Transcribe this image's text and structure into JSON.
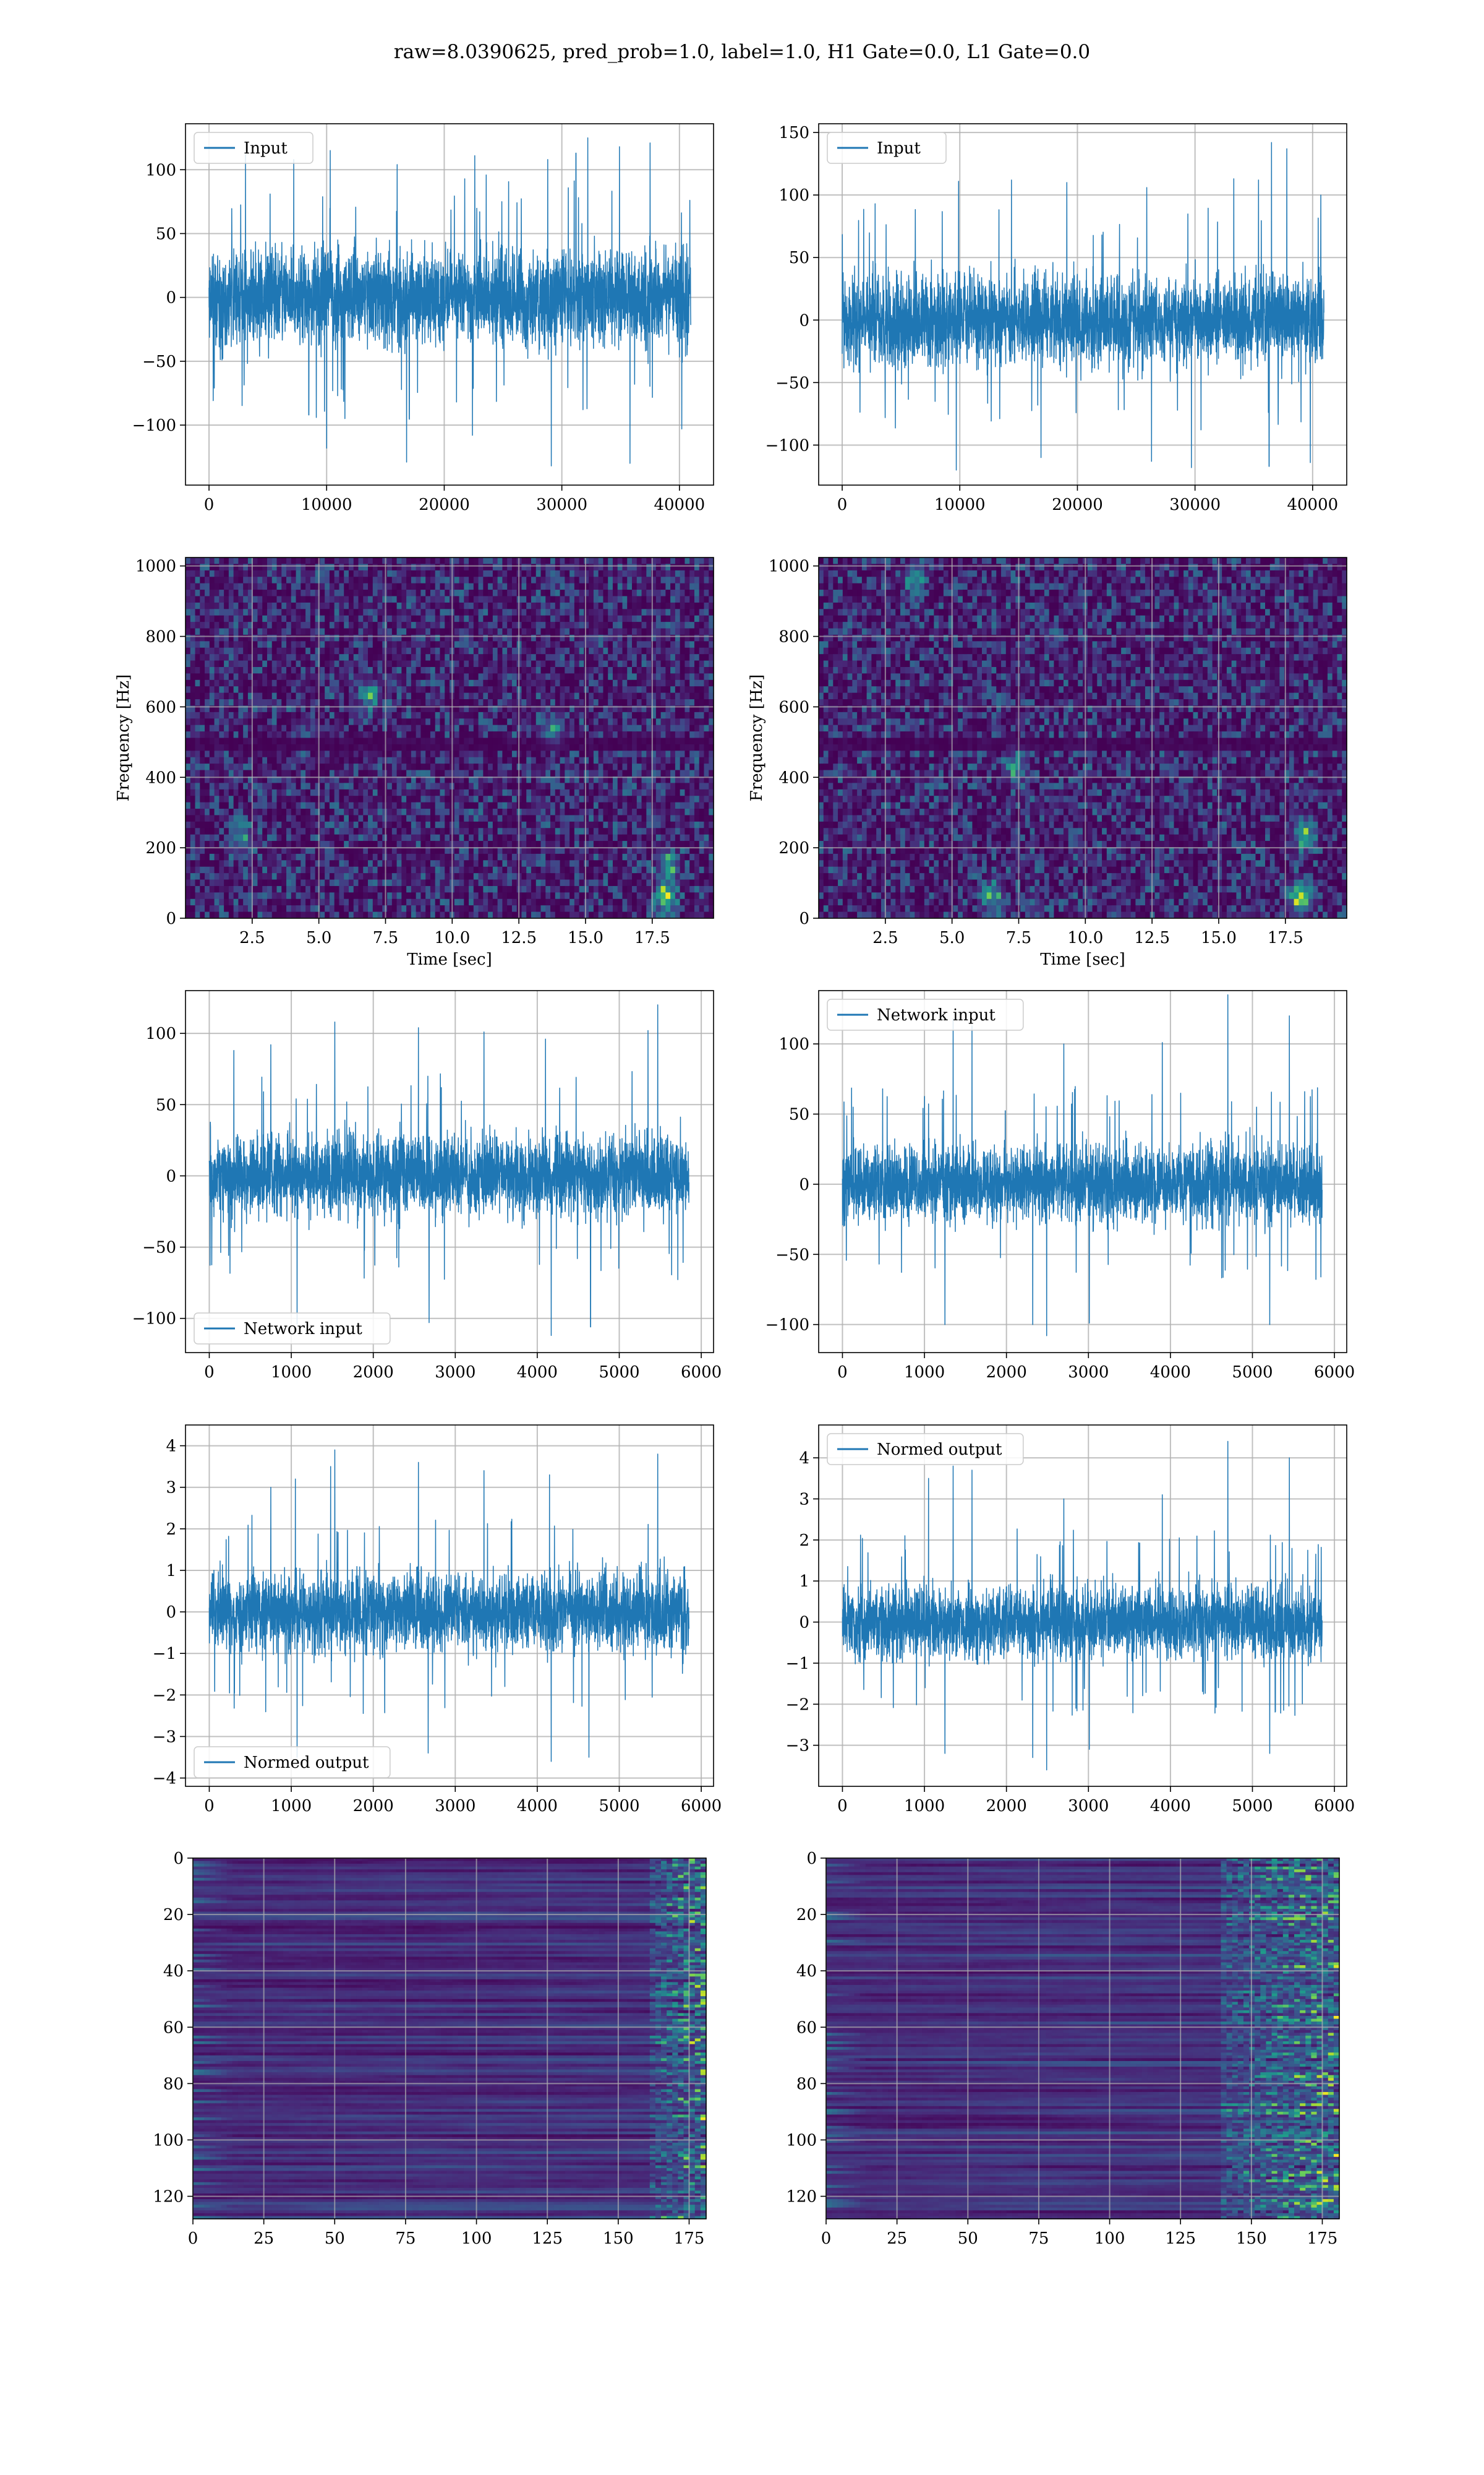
{
  "suptitle": "raw=8.0390625, pred_prob=1.0, label=1.0, H1 Gate=0.0, L1 Gate=0.0",
  "colors": {
    "series": "#1f77b4",
    "grid": "#b0b0b0",
    "viridis": [
      "#440154",
      "#482777",
      "#3f4a8a",
      "#31678e",
      "#26838f",
      "#1f9d8a",
      "#6cce5a",
      "#b6de2b",
      "#fee825"
    ]
  },
  "chart_data": [
    {
      "type": "line",
      "legend": "Input",
      "legend_loc": "upper left",
      "xlim": [
        -2000,
        42900
      ],
      "ylim": [
        -147,
        136
      ],
      "xticks": [
        0,
        10000,
        20000,
        30000,
        40000
      ],
      "xtick_labels": [
        "0",
        "10000",
        "20000",
        "30000",
        "40000"
      ],
      "yticks": [
        -100,
        -50,
        0,
        50,
        100
      ],
      "ytick_labels": [
        "−100",
        "−50",
        "0",
        "50",
        "100"
      ],
      "x_range": [
        0,
        40960
      ],
      "band": [
        -55,
        55
      ],
      "extremes": [
        {
          "x": 3100,
          "y": 112
        },
        {
          "x": 7200,
          "y": 108
        },
        {
          "x": 10300,
          "y": 115
        },
        {
          "x": 16000,
          "y": 104
        },
        {
          "x": 22600,
          "y": 111
        },
        {
          "x": 28800,
          "y": 108
        },
        {
          "x": 31200,
          "y": 113
        },
        {
          "x": 32200,
          "y": 125
        },
        {
          "x": 34900,
          "y": 118
        },
        {
          "x": 37500,
          "y": 121
        },
        {
          "x": 10000,
          "y": -118
        },
        {
          "x": 16800,
          "y": -129
        },
        {
          "x": 22400,
          "y": -108
        },
        {
          "x": 29100,
          "y": -132
        },
        {
          "x": 35800,
          "y": -130
        },
        {
          "x": 40200,
          "y": -103
        }
      ],
      "seed": 11
    },
    {
      "type": "line",
      "legend": "Input",
      "legend_loc": "upper left",
      "xlim": [
        -2000,
        42900
      ],
      "ylim": [
        -132,
        157
      ],
      "xticks": [
        0,
        10000,
        20000,
        30000,
        40000
      ],
      "xtick_labels": [
        "0",
        "10000",
        "20000",
        "30000",
        "40000"
      ],
      "yticks": [
        -100,
        -50,
        0,
        50,
        100,
        150
      ],
      "ytick_labels": [
        "−100",
        "−50",
        "0",
        "50",
        "100",
        "150"
      ],
      "x_range": [
        0,
        40960
      ],
      "band": [
        -52,
        52
      ],
      "extremes": [
        {
          "x": 2800,
          "y": 93
        },
        {
          "x": 9900,
          "y": 111
        },
        {
          "x": 14400,
          "y": 112
        },
        {
          "x": 19100,
          "y": 110
        },
        {
          "x": 25900,
          "y": 106
        },
        {
          "x": 33300,
          "y": 113
        },
        {
          "x": 35400,
          "y": 112
        },
        {
          "x": 36500,
          "y": 142
        },
        {
          "x": 37800,
          "y": 137
        },
        {
          "x": 40700,
          "y": 100
        },
        {
          "x": 9700,
          "y": -120
        },
        {
          "x": 16900,
          "y": -110
        },
        {
          "x": 26300,
          "y": -113
        },
        {
          "x": 29700,
          "y": -118
        },
        {
          "x": 36300,
          "y": -117
        },
        {
          "x": 39800,
          "y": -114
        }
      ],
      "seed": 23
    },
    {
      "type": "heatmap",
      "xlabel": "Time [sec]",
      "ylabel": "Frequency [Hz]",
      "xlim": [
        0,
        19.8
      ],
      "ylim": [
        0,
        1024
      ],
      "xticks": [
        2.5,
        5.0,
        7.5,
        10.0,
        12.5,
        15.0,
        17.5
      ],
      "xtick_labels": [
        "2.5",
        "5.0",
        "7.5",
        "10.0",
        "12.5",
        "15.0",
        "17.5"
      ],
      "yticks": [
        0,
        200,
        400,
        600,
        800,
        1000
      ],
      "ytick_labels": [
        "0",
        "200",
        "400",
        "600",
        "800",
        "1000"
      ],
      "dark_band_hz": [
        470,
        510
      ],
      "hotspots": [
        {
          "x": 18.0,
          "y": 60,
          "v": 0.7
        },
        {
          "x": 18.1,
          "y": 150,
          "v": 0.45
        },
        {
          "x": 6.9,
          "y": 630,
          "v": 0.4
        },
        {
          "x": 13.8,
          "y": 540,
          "v": 0.38
        },
        {
          "x": 2.1,
          "y": 230,
          "v": 0.35
        }
      ],
      "seed": 41
    },
    {
      "type": "heatmap",
      "xlabel": "Time [sec]",
      "ylabel": "Frequency [Hz]",
      "xlim": [
        0,
        19.8
      ],
      "ylim": [
        0,
        1024
      ],
      "xticks": [
        2.5,
        5.0,
        7.5,
        10.0,
        12.5,
        15.0,
        17.5
      ],
      "xtick_labels": [
        "2.5",
        "5.0",
        "7.5",
        "10.0",
        "12.5",
        "15.0",
        "17.5"
      ],
      "yticks": [
        0,
        200,
        400,
        600,
        800,
        1000
      ],
      "ytick_labels": [
        "0",
        "200",
        "400",
        "600",
        "800",
        "1000"
      ],
      "dark_band_hz": [
        470,
        510
      ],
      "hotspots": [
        {
          "x": 18.1,
          "y": 60,
          "v": 0.8
        },
        {
          "x": 18.2,
          "y": 240,
          "v": 0.6
        },
        {
          "x": 3.6,
          "y": 960,
          "v": 0.45
        },
        {
          "x": 6.5,
          "y": 60,
          "v": 0.45
        },
        {
          "x": 7.4,
          "y": 430,
          "v": 0.4
        }
      ],
      "seed": 53
    },
    {
      "type": "line",
      "legend": "Network input",
      "legend_loc": "lower left",
      "xlim": [
        -290,
        6150
      ],
      "ylim": [
        -124,
        130
      ],
      "xticks": [
        0,
        1000,
        2000,
        3000,
        4000,
        5000,
        6000
      ],
      "xtick_labels": [
        "0",
        "1000",
        "2000",
        "3000",
        "4000",
        "5000",
        "6000"
      ],
      "yticks": [
        -100,
        -50,
        0,
        50,
        100
      ],
      "ytick_labels": [
        "−100",
        "−50",
        "0",
        "50",
        "100"
      ],
      "x_range": [
        0,
        5850
      ],
      "band": [
        -42,
        42
      ],
      "extremes": [
        {
          "x": 300,
          "y": 88
        },
        {
          "x": 750,
          "y": 92
        },
        {
          "x": 1530,
          "y": 108
        },
        {
          "x": 2550,
          "y": 104
        },
        {
          "x": 3350,
          "y": 101
        },
        {
          "x": 4100,
          "y": 96
        },
        {
          "x": 5350,
          "y": 102
        },
        {
          "x": 5470,
          "y": 120
        },
        {
          "x": 1070,
          "y": -104
        },
        {
          "x": 2680,
          "y": -103
        },
        {
          "x": 4170,
          "y": -112
        },
        {
          "x": 4650,
          "y": -106
        }
      ],
      "seed": 67
    },
    {
      "type": "line",
      "legend": "Network input",
      "legend_loc": "upper left",
      "xlim": [
        -290,
        6150
      ],
      "ylim": [
        -120,
        138
      ],
      "xticks": [
        0,
        1000,
        2000,
        3000,
        4000,
        5000,
        6000
      ],
      "xtick_labels": [
        "0",
        "1000",
        "2000",
        "3000",
        "4000",
        "5000",
        "6000"
      ],
      "yticks": [
        -100,
        -50,
        0,
        50,
        100
      ],
      "ytick_labels": [
        "−100",
        "−50",
        "0",
        "50",
        "100"
      ],
      "x_range": [
        0,
        5850
      ],
      "band": [
        -40,
        40
      ],
      "extremes": [
        {
          "x": 1350,
          "y": 118
        },
        {
          "x": 1580,
          "y": 113
        },
        {
          "x": 2700,
          "y": 100
        },
        {
          "x": 3900,
          "y": 101
        },
        {
          "x": 4700,
          "y": 135
        },
        {
          "x": 5450,
          "y": 120
        },
        {
          "x": 1250,
          "y": -100
        },
        {
          "x": 2320,
          "y": -100
        },
        {
          "x": 2490,
          "y": -108
        },
        {
          "x": 3010,
          "y": -99
        },
        {
          "x": 5210,
          "y": -100
        }
      ],
      "seed": 79
    },
    {
      "type": "line",
      "legend": "Normed output",
      "legend_loc": "lower left",
      "xlim": [
        -290,
        6150
      ],
      "ylim": [
        -4.2,
        4.5
      ],
      "xticks": [
        0,
        1000,
        2000,
        3000,
        4000,
        5000,
        6000
      ],
      "xtick_labels": [
        "0",
        "1000",
        "2000",
        "3000",
        "4000",
        "5000",
        "6000"
      ],
      "yticks": [
        -4,
        -3,
        -2,
        -1,
        0,
        1,
        2,
        3,
        4
      ],
      "ytick_labels": [
        "−4",
        "−3",
        "−2",
        "−1",
        "0",
        "1",
        "2",
        "3",
        "4"
      ],
      "x_range": [
        0,
        5850
      ],
      "band": [
        -1.4,
        1.4
      ],
      "extremes": [
        {
          "x": 750,
          "y": 3.0
        },
        {
          "x": 1050,
          "y": 3.2
        },
        {
          "x": 1480,
          "y": 3.5
        },
        {
          "x": 1530,
          "y": 3.9
        },
        {
          "x": 2550,
          "y": 3.6
        },
        {
          "x": 3350,
          "y": 3.4
        },
        {
          "x": 4150,
          "y": 3.3
        },
        {
          "x": 5470,
          "y": 3.8
        },
        {
          "x": 1070,
          "y": -3.5
        },
        {
          "x": 2670,
          "y": -3.4
        },
        {
          "x": 4170,
          "y": -3.6
        },
        {
          "x": 4630,
          "y": -3.5
        }
      ],
      "seed": 83
    },
    {
      "type": "line",
      "legend": "Normed output",
      "legend_loc": "upper left",
      "xlim": [
        -290,
        6150
      ],
      "ylim": [
        -4.0,
        4.8
      ],
      "xticks": [
        0,
        1000,
        2000,
        3000,
        4000,
        5000,
        6000
      ],
      "xtick_labels": [
        "0",
        "1000",
        "2000",
        "3000",
        "4000",
        "5000",
        "6000"
      ],
      "yticks": [
        -3,
        -2,
        -1,
        0,
        1,
        2,
        3,
        4
      ],
      "ytick_labels": [
        "−3",
        "−2",
        "−1",
        "0",
        "1",
        "2",
        "3",
        "4"
      ],
      "x_range": [
        0,
        5850
      ],
      "band": [
        -1.3,
        1.3
      ],
      "extremes": [
        {
          "x": 1050,
          "y": 3.5
        },
        {
          "x": 1350,
          "y": 3.8
        },
        {
          "x": 1580,
          "y": 3.7
        },
        {
          "x": 2700,
          "y": 3.0
        },
        {
          "x": 3900,
          "y": 3.1
        },
        {
          "x": 4700,
          "y": 4.4
        },
        {
          "x": 5450,
          "y": 4.0
        },
        {
          "x": 1250,
          "y": -3.2
        },
        {
          "x": 2320,
          "y": -3.3
        },
        {
          "x": 2490,
          "y": -3.6
        },
        {
          "x": 3010,
          "y": -3.1
        },
        {
          "x": 5210,
          "y": -3.2
        }
      ],
      "seed": 97
    },
    {
      "type": "heatmap",
      "xlim": [
        0,
        181
      ],
      "ylim": [
        128,
        0
      ],
      "xticks": [
        0,
        25,
        50,
        75,
        100,
        125,
        150,
        175
      ],
      "xtick_labels": [
        "0",
        "25",
        "50",
        "75",
        "100",
        "125",
        "150",
        "175"
      ],
      "yticks": [
        0,
        20,
        40,
        60,
        80,
        100,
        120
      ],
      "ytick_labels": [
        "0",
        "20",
        "40",
        "60",
        "80",
        "100",
        "120"
      ],
      "hot_columns": [
        162,
        181
      ],
      "seed": 101
    },
    {
      "type": "heatmap",
      "xlim": [
        0,
        181
      ],
      "ylim": [
        128,
        0
      ],
      "xticks": [
        0,
        25,
        50,
        75,
        100,
        125,
        150,
        175
      ],
      "xtick_labels": [
        "0",
        "25",
        "50",
        "75",
        "100",
        "125",
        "150",
        "175"
      ],
      "yticks": [
        0,
        20,
        40,
        60,
        80,
        100,
        120
      ],
      "ytick_labels": [
        "0",
        "20",
        "40",
        "60",
        "80",
        "100",
        "120"
      ],
      "hot_columns": [
        140,
        181
      ],
      "seed": 113
    }
  ]
}
